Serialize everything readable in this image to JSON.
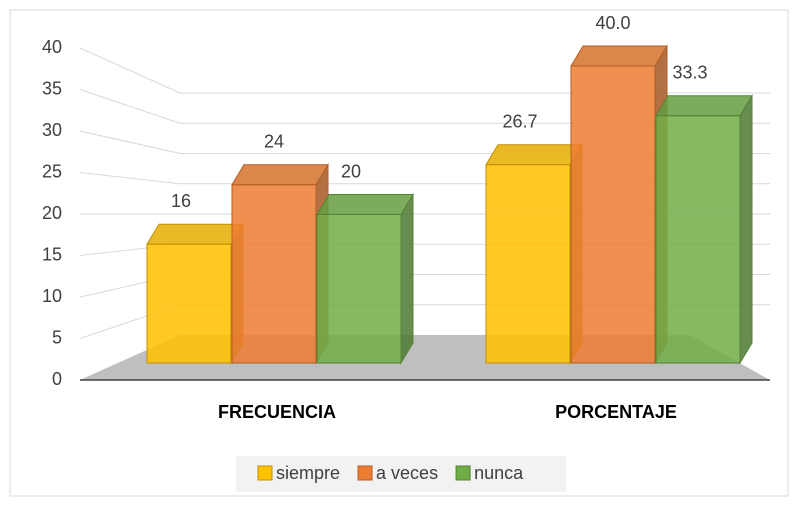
{
  "chart_data": {
    "type": "bar3d",
    "categories": [
      "FRECUENCIA",
      "PORCENTAJE"
    ],
    "series": [
      {
        "name": "siempre",
        "color": "#ffc000",
        "values": [
          16,
          26.7
        ],
        "value_labels": [
          "16",
          "26.7"
        ]
      },
      {
        "name": "a veces",
        "color": "#ed7d31",
        "values": [
          24,
          40.0
        ],
        "value_labels": [
          "24",
          "40.0"
        ]
      },
      {
        "name": "nunca",
        "color": "#70ad47",
        "values": [
          20,
          33.3
        ],
        "value_labels": [
          "20",
          "33.3"
        ]
      }
    ],
    "ylim": [
      0,
      40
    ],
    "yticks": [
      0,
      5,
      10,
      15,
      20,
      25,
      30,
      35,
      40
    ],
    "grid": true,
    "legend": "bottom"
  }
}
